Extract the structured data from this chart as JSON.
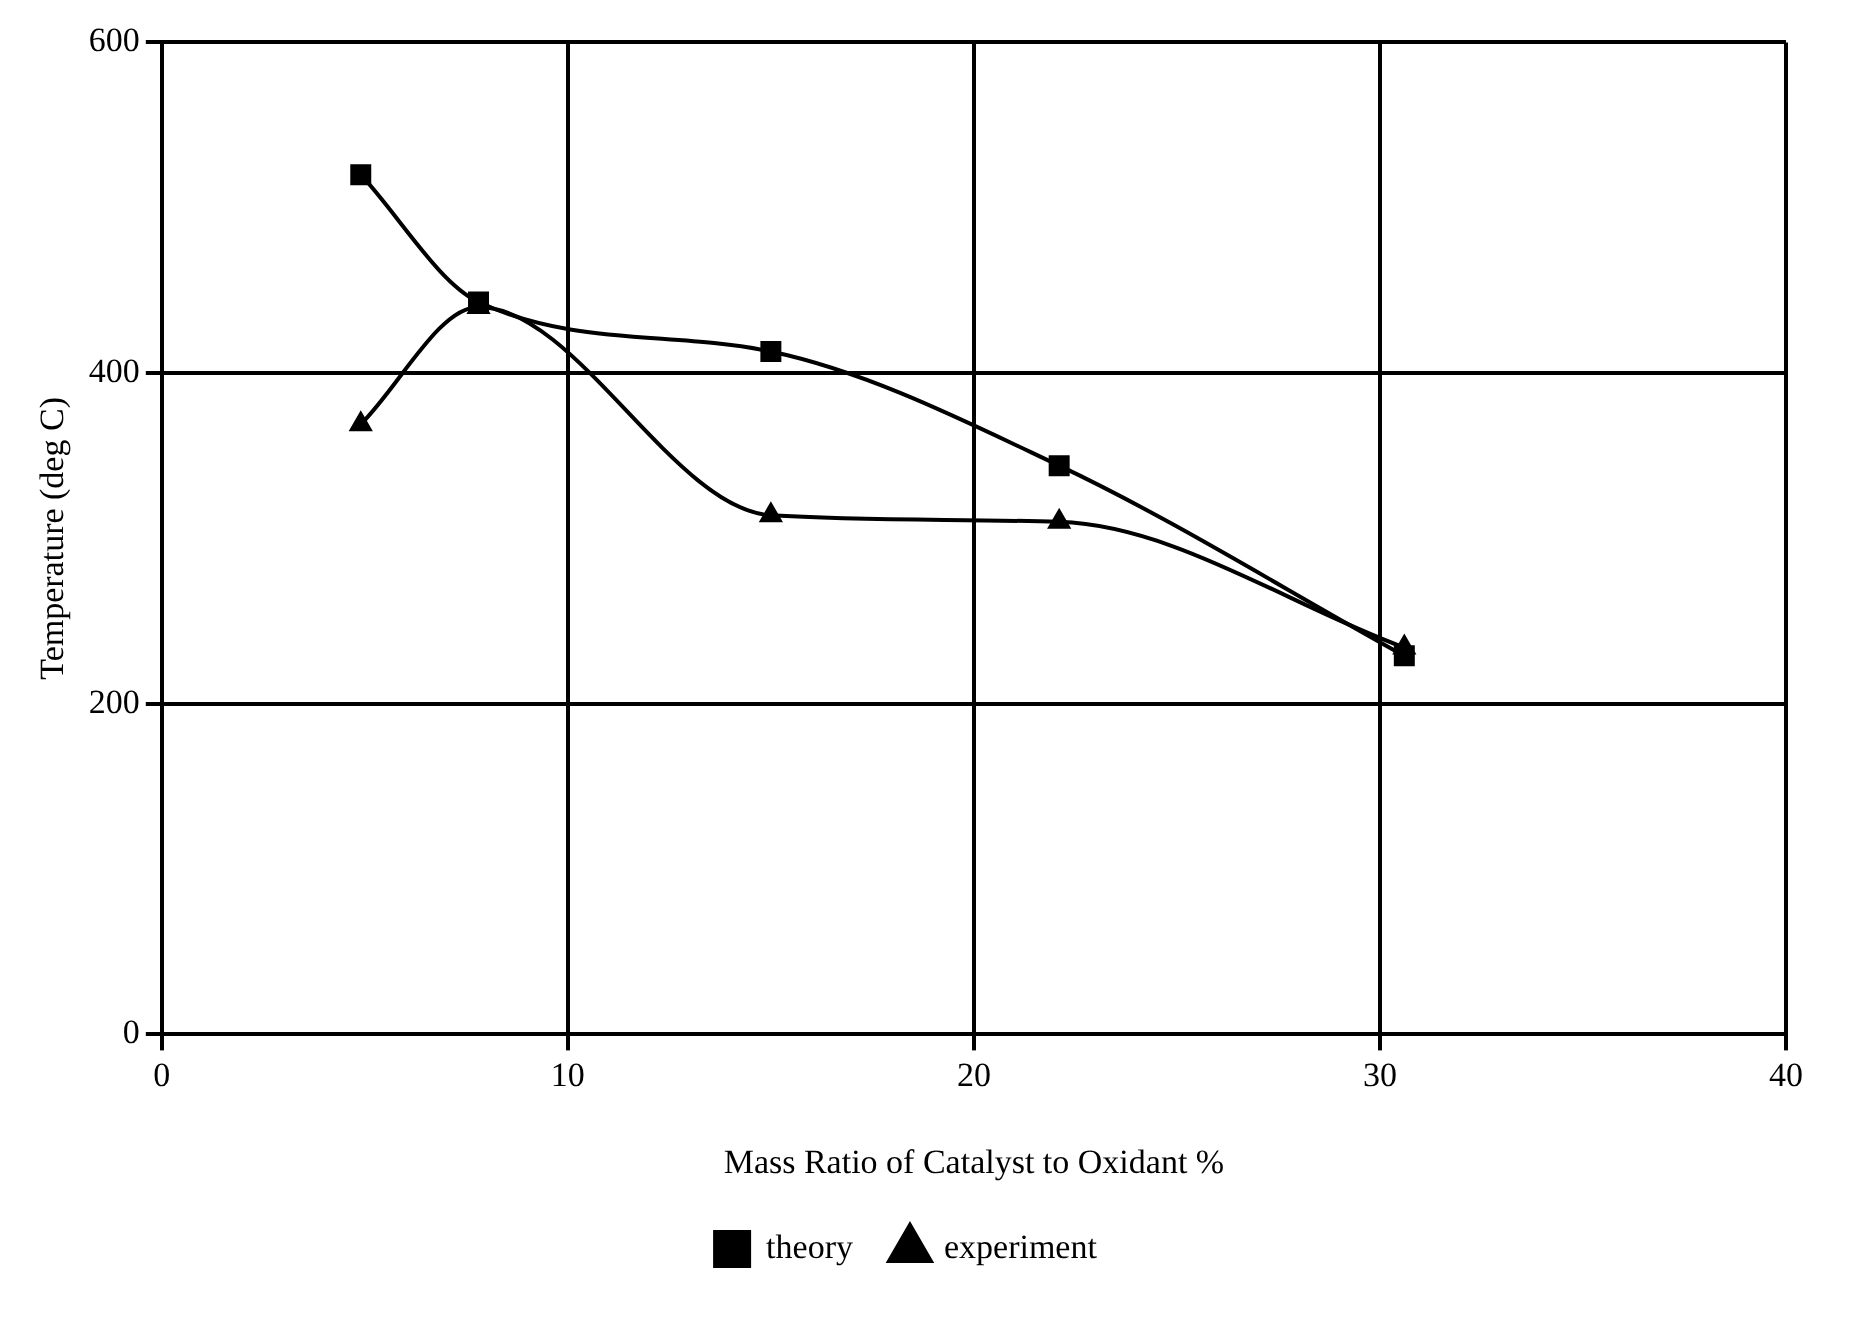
{
  "chart_data": {
    "type": "line",
    "xlabel": "Mass Ratio of Catalyst to Oxidant %",
    "ylabel": "Temperature (deg C)",
    "xlim": [
      0,
      40
    ],
    "xticks": [
      0,
      10,
      20,
      30,
      40
    ],
    "ylim": [
      0,
      600
    ],
    "yticks": [
      0,
      200,
      400,
      600
    ],
    "grid": true,
    "legend": "bottom",
    "line_style": "solid",
    "series": [
      {
        "name": "experiment",
        "color": "#000000",
        "marker": "triangle",
        "x": [
          4.9,
          7.8,
          15,
          22.1,
          30.6
        ],
        "values": [
          369,
          440,
          314,
          310,
          234
        ]
      },
      {
        "name": "theory",
        "color": "#000000",
        "marker": "square",
        "x": [
          4.9,
          7.8,
          15,
          22.1,
          30.6
        ],
        "values": [
          520,
          443,
          413,
          344,
          229
        ]
      }
    ]
  }
}
